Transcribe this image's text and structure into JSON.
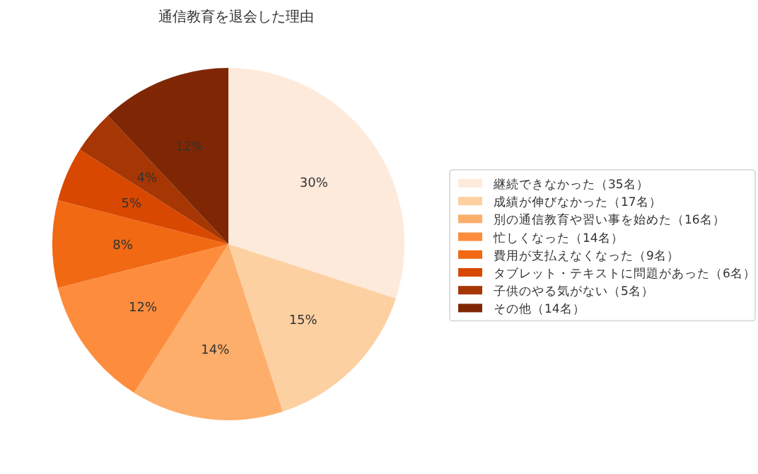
{
  "chart_data": {
    "type": "pie",
    "title": "通信教育を退会した理由",
    "categories": [
      "継続できなかった（35名）",
      "成績が伸びなかった（17名）",
      "別の通信教育や習い事を始めた（16名）",
      "忙しくなった（14名）",
      "費用が支払えなくなった（9名）",
      "タブレット・テキストに問題があった（6名）",
      "子供のやる気がない（5名）",
      "その他（14名）"
    ],
    "values": [
      30,
      15,
      14,
      12,
      8,
      5,
      4,
      12
    ],
    "value_labels": [
      "30%",
      "15%",
      "14%",
      "12%",
      "8%",
      "5%",
      "4%",
      "12%"
    ],
    "colors": [
      "#feeadb",
      "#fdd0a2",
      "#fdae6b",
      "#fd8d3c",
      "#f16913",
      "#d94801",
      "#a63603",
      "#7f2704"
    ],
    "legend": "right"
  }
}
